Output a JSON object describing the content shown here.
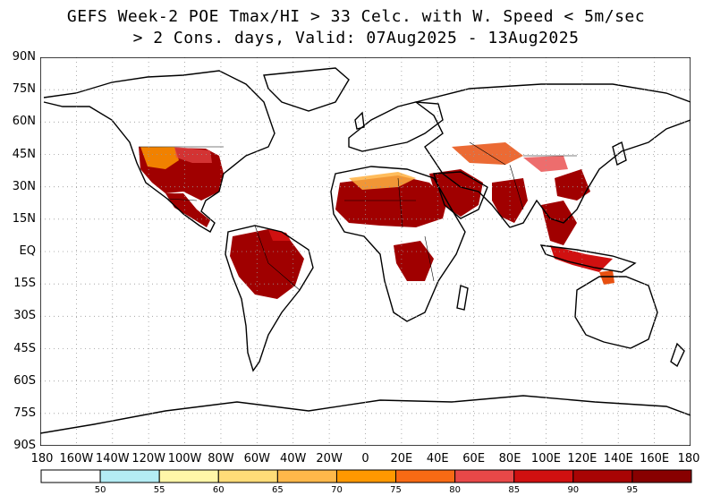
{
  "title": {
    "line1": "GEFS Week-2 POE Tmax/HI > 33 Celc. with W. Speed < 5m/sec",
    "line2": "> 2 Cons. days, Valid: 07Aug2025 - 13Aug2025"
  },
  "lat_labels": [
    "90N",
    "75N",
    "60N",
    "45N",
    "30N",
    "15N",
    "EQ",
    "15S",
    "30S",
    "45S",
    "60S",
    "75S",
    "90S"
  ],
  "lon_labels": [
    "180",
    "160W",
    "140W",
    "120W",
    "100W",
    "80W",
    "60W",
    "40W",
    "20W",
    "0",
    "20E",
    "40E",
    "60E",
    "80E",
    "100E",
    "120E",
    "140E",
    "160E",
    "180"
  ],
  "colorbar": {
    "ticks": [
      "50",
      "55",
      "60",
      "65",
      "70",
      "75",
      "80",
      "85",
      "90",
      "95"
    ],
    "colors": [
      "#ffffff",
      "#b4ecf4",
      "#fff6a8",
      "#ffdc78",
      "#ffb84a",
      "#ff9800",
      "#f86a14",
      "#e84848",
      "#d01010",
      "#a80404",
      "#880000"
    ]
  },
  "colors": {
    "land_outline": "#000000",
    "grid": "#999999",
    "high_prob": "#a00000",
    "mid_prob": "#e85010",
    "low_prob": "#ffb040"
  }
}
